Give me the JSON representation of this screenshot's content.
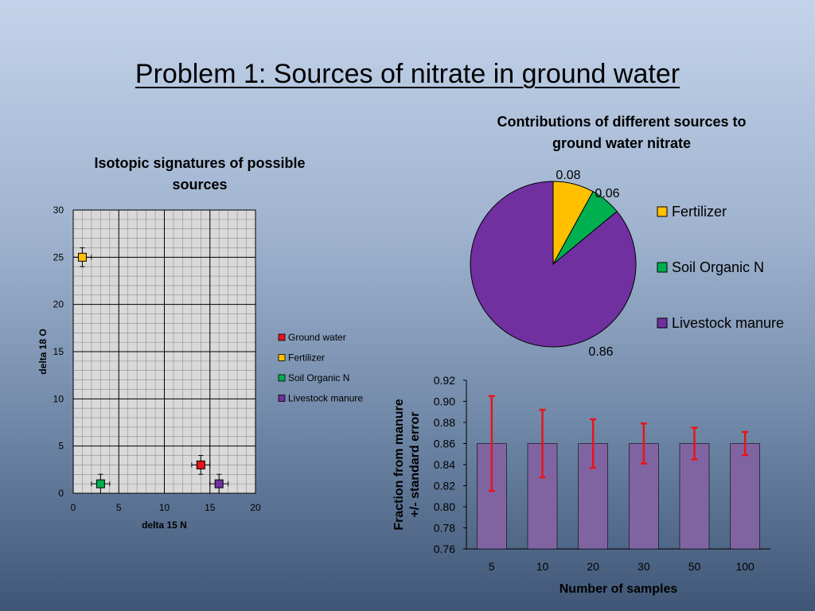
{
  "slide": {
    "title": "Problem 1: Sources of nitrate in ground water"
  },
  "chart_data": [
    {
      "type": "scatter",
      "title": "Isotopic signatures of possible sources",
      "xlabel": "delta 15 N",
      "ylabel": "delta 18 O",
      "xlim": [
        0,
        20
      ],
      "ylim": [
        0,
        30
      ],
      "x_ticks": [
        "0",
        "5",
        "10",
        "15",
        "20"
      ],
      "y_ticks": [
        "0",
        "5",
        "10",
        "15",
        "20",
        "25",
        "30"
      ],
      "grid": true,
      "legend_position": "right",
      "series": [
        {
          "name": "Ground water",
          "color": "#e8141a",
          "points": [
            {
              "x": 14,
              "y": 3,
              "xerr": 1,
              "yerr": 1
            }
          ]
        },
        {
          "name": "Fertilizer",
          "color": "#ffc000",
          "points": [
            {
              "x": 1,
              "y": 25,
              "xerr": 1,
              "yerr": 1
            }
          ]
        },
        {
          "name": "Soil Organic N",
          "color": "#00b050",
          "points": [
            {
              "x": 3,
              "y": 1,
              "xerr": 1,
              "yerr": 1
            }
          ]
        },
        {
          "name": "Livestock manure",
          "color": "#7030a0",
          "points": [
            {
              "x": 16,
              "y": 1,
              "xerr": 1,
              "yerr": 1
            }
          ]
        }
      ]
    },
    {
      "type": "pie",
      "title": "Contributions of different sources to ground water nitrate",
      "legend_position": "right",
      "slices": [
        {
          "label": "Fertilizer",
          "value": 0.08,
          "value_label": "0.08",
          "color": "#ffc000"
        },
        {
          "label": "Soil Organic N",
          "value": 0.06,
          "value_label": "0.06",
          "color": "#00b050"
        },
        {
          "label": "Livestock manure",
          "value": 0.86,
          "value_label": "0.86",
          "color": "#7030a0"
        }
      ]
    },
    {
      "type": "bar",
      "title": "",
      "xlabel": "Number of samples",
      "ylabel": "Fraction from manure +/- standard error",
      "ylabel_lines": [
        "Fraction from manure",
        "+/- standard error"
      ],
      "ylim": [
        0.76,
        0.92
      ],
      "y_ticks": [
        "0.76",
        "0.78",
        "0.80",
        "0.82",
        "0.84",
        "0.86",
        "0.88",
        "0.90",
        "0.92"
      ],
      "categories": [
        "5",
        "10",
        "20",
        "30",
        "50",
        "100"
      ],
      "values": [
        0.86,
        0.86,
        0.86,
        0.86,
        0.86,
        0.86
      ],
      "errors": [
        0.045,
        0.032,
        0.023,
        0.019,
        0.015,
        0.011
      ],
      "bar_color": "#8064a2",
      "error_color": "#e8141a"
    }
  ]
}
